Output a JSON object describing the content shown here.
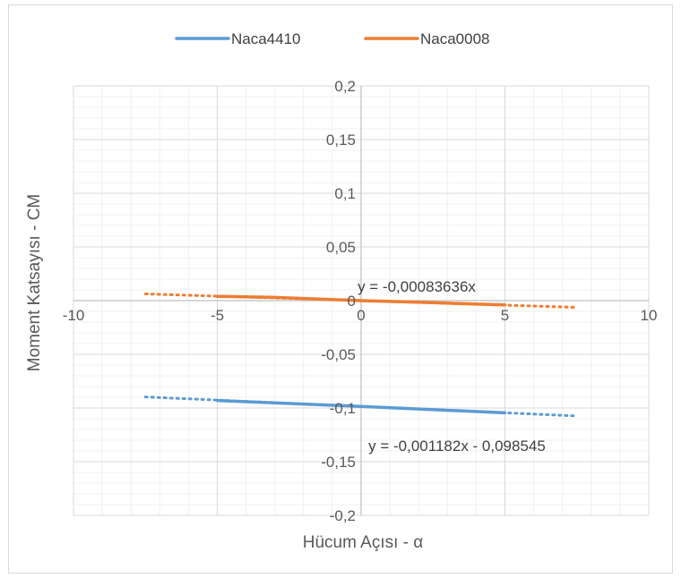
{
  "chart_data": {
    "type": "line",
    "xlabel": "Hücum Açısı - α",
    "ylabel": "Moment Katsayısı - CM",
    "xlim": [
      -10,
      10
    ],
    "ylim": [
      -0.2,
      0.2
    ],
    "x_major_ticks": [
      -10,
      -5,
      0,
      5,
      10
    ],
    "x_tick_labels": [
      "-10",
      "-5",
      "0",
      "5",
      "10"
    ],
    "y_major_ticks": [
      -0.2,
      -0.15,
      -0.1,
      -0.05,
      0,
      0.05,
      0.1,
      0.15,
      0.2
    ],
    "y_tick_labels": [
      "-0,2",
      "-0,15",
      "-0,1",
      "-0,05",
      "0",
      "0,05",
      "0,1",
      "0,15",
      "0,2"
    ],
    "grid": true,
    "legend_position": "top",
    "series": [
      {
        "name": "Naca4410",
        "color": "#5b9bd5",
        "x": [
          -5,
          0,
          5
        ],
        "y": [
          -0.093,
          -0.0985,
          -0.1045
        ],
        "trendline": {
          "slope": -0.001182,
          "intercept": -0.098545,
          "x_range": [
            -7.5,
            7.5
          ],
          "label": "y = -0,001182x - 0,098545"
        }
      },
      {
        "name": "Naca0008",
        "color": "#ed7d31",
        "x": [
          -5,
          -3,
          0,
          2,
          5
        ],
        "y": [
          0.004,
          0.003,
          0,
          -0.0015,
          -0.004
        ],
        "trendline": {
          "slope": -0.00083636,
          "intercept": 0,
          "x_range": [
            -7.5,
            7.5
          ],
          "label": "y = -0,00083636x"
        }
      }
    ]
  }
}
